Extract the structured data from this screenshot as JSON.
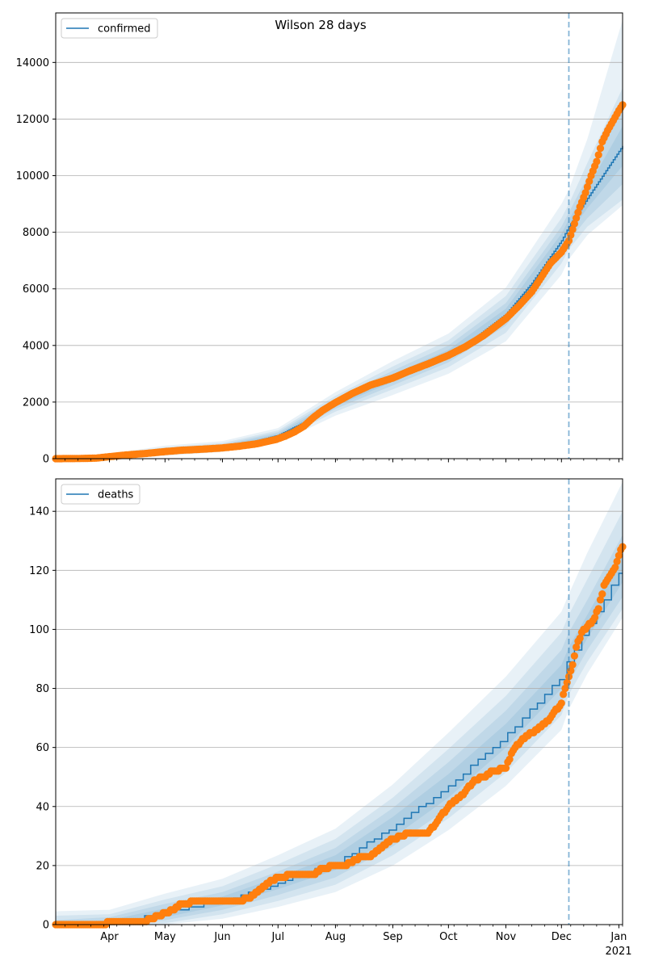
{
  "title": "Wilson 28 days",
  "colors": {
    "model": "#1f77b4",
    "observed": "#ff7f0e",
    "band": "#1f77b4",
    "grid": "#b0b0b0",
    "forecast_line": "#1f77b4"
  },
  "chart_data": [
    {
      "type": "line",
      "title": "Wilson 28 days",
      "legend": {
        "label": "confirmed",
        "position": "top-left"
      },
      "x_range": [
        "2020-03-03",
        "2021-01-03"
      ],
      "ylim": [
        0,
        15750
      ],
      "y_ticks": [
        0,
        2000,
        4000,
        6000,
        8000,
        10000,
        12000,
        14000
      ],
      "y_tick_labels": [
        "0",
        "2000",
        "4000",
        "6000",
        "8000",
        "10000",
        "12000",
        "14000"
      ],
      "grid": "horizontal",
      "forecast_start": "2020-12-05",
      "series": [
        {
          "name": "confirmed",
          "kind": "model-median",
          "x": [
            "2020-03-03",
            "2020-03-20",
            "2020-04-01",
            "2020-04-15",
            "2020-05-01",
            "2020-05-15",
            "2020-06-01",
            "2020-06-15",
            "2020-07-01",
            "2020-07-15",
            "2020-08-01",
            "2020-08-15",
            "2020-09-01",
            "2020-09-15",
            "2020-10-01",
            "2020-10-15",
            "2020-11-01",
            "2020-11-15",
            "2020-12-01",
            "2020-12-05",
            "2020-12-15",
            "2021-01-03"
          ],
          "y": [
            0,
            15,
            60,
            150,
            270,
            330,
            420,
            560,
            820,
            1280,
            1940,
            2400,
            2850,
            3250,
            3700,
            4250,
            5100,
            6200,
            7700,
            8200,
            9200,
            11050
          ]
        },
        {
          "kind": "band-inner",
          "x": [
            "2020-03-03",
            "2020-04-01",
            "2020-05-01",
            "2020-06-01",
            "2020-07-01",
            "2020-08-01",
            "2020-09-01",
            "2020-10-01",
            "2020-11-01",
            "2020-12-01",
            "2020-12-05",
            "2020-12-15",
            "2021-01-03"
          ],
          "lower": [
            0,
            40,
            230,
            380,
            760,
            1850,
            2720,
            3550,
            4900,
            7450,
            7950,
            8850,
            10350
          ],
          "upper": [
            0,
            80,
            310,
            460,
            880,
            2030,
            2980,
            3850,
            5300,
            7950,
            8450,
            9550,
            11750
          ]
        },
        {
          "kind": "band-middle",
          "x": [
            "2020-03-03",
            "2020-04-01",
            "2020-05-01",
            "2020-06-01",
            "2020-07-01",
            "2020-08-01",
            "2020-09-01",
            "2020-10-01",
            "2020-11-01",
            "2020-12-01",
            "2020-12-05",
            "2020-12-15",
            "2021-01-03"
          ],
          "lower": [
            0,
            25,
            190,
            340,
            700,
            1760,
            2590,
            3400,
            4700,
            7200,
            7700,
            8500,
            9700
          ],
          "upper": [
            5,
            100,
            350,
            500,
            940,
            2120,
            3110,
            4000,
            5500,
            8200,
            8700,
            9950,
            12450
          ]
        },
        {
          "kind": "band-outer",
          "x": [
            "2020-03-03",
            "2020-04-01",
            "2020-05-01",
            "2020-06-01",
            "2020-07-01",
            "2020-08-01",
            "2020-09-01",
            "2020-10-01",
            "2020-11-01",
            "2020-12-01",
            "2020-12-05",
            "2020-12-15",
            "2021-01-03"
          ],
          "lower": [
            0,
            10,
            150,
            300,
            640,
            1660,
            2450,
            3230,
            4450,
            6900,
            7400,
            8200,
            9150
          ],
          "upper": [
            15,
            130,
            400,
            550,
            1000,
            2220,
            3260,
            4180,
            5750,
            8500,
            9000,
            10450,
            13100
          ]
        },
        {
          "kind": "band-widest",
          "x": [
            "2020-03-03",
            "2020-04-01",
            "2020-05-01",
            "2020-06-01",
            "2020-07-01",
            "2020-08-01",
            "2020-09-01",
            "2020-10-01",
            "2020-11-01",
            "2020-12-01",
            "2020-12-05",
            "2020-12-15",
            "2021-01-03"
          ],
          "lower": [
            0,
            0,
            100,
            240,
            560,
            1520,
            2250,
            3000,
            4150,
            6500,
            7050,
            7900,
            8950
          ],
          "upper": [
            30,
            170,
            460,
            620,
            1080,
            2350,
            3450,
            4420,
            6050,
            9000,
            9500,
            11300,
            15500
          ]
        },
        {
          "name": "observed",
          "kind": "observed",
          "x": [
            "2020-03-03",
            "2020-03-15",
            "2020-03-25",
            "2020-04-01",
            "2020-04-10",
            "2020-04-20",
            "2020-05-01",
            "2020-05-10",
            "2020-05-20",
            "2020-06-01",
            "2020-06-10",
            "2020-06-20",
            "2020-06-30",
            "2020-07-05",
            "2020-07-10",
            "2020-07-15",
            "2020-07-20",
            "2020-07-25",
            "2020-08-01",
            "2020-08-10",
            "2020-08-20",
            "2020-09-01",
            "2020-09-10",
            "2020-09-20",
            "2020-10-01",
            "2020-10-10",
            "2020-10-20",
            "2020-11-01",
            "2020-11-08",
            "2020-11-15",
            "2020-11-20",
            "2020-11-25",
            "2020-12-01",
            "2020-12-05",
            "2020-12-08",
            "2020-12-11",
            "2020-12-14",
            "2020-12-17",
            "2020-12-20",
            "2020-12-23",
            "2020-12-26",
            "2020-12-29",
            "2021-01-01",
            "2021-01-03"
          ],
          "y": [
            0,
            5,
            20,
            70,
            130,
            180,
            250,
            300,
            330,
            380,
            440,
            530,
            680,
            800,
            950,
            1150,
            1450,
            1700,
            1980,
            2300,
            2600,
            2850,
            3100,
            3350,
            3650,
            3950,
            4350,
            4950,
            5400,
            5900,
            6400,
            6900,
            7300,
            7700,
            8300,
            8900,
            9400,
            10000,
            10500,
            11200,
            11600,
            11950,
            12300,
            12500
          ]
        }
      ]
    },
    {
      "type": "line",
      "legend": {
        "label": "deaths",
        "position": "top-left"
      },
      "x_range": [
        "2020-03-03",
        "2021-01-03"
      ],
      "x_ticks": [
        "2020-04-01",
        "2020-05-01",
        "2020-06-01",
        "2020-07-01",
        "2020-08-01",
        "2020-09-01",
        "2020-10-01",
        "2020-11-01",
        "2020-12-01",
        "2021-01-01"
      ],
      "x_tick_labels": [
        "Apr",
        "May",
        "Jun",
        "Jul",
        "Aug",
        "Sep",
        "Oct",
        "Nov",
        "Dec",
        "Jan"
      ],
      "x_year_label": "2021",
      "ylim": [
        0,
        151
      ],
      "y_ticks": [
        0,
        20,
        40,
        60,
        80,
        100,
        120,
        140
      ],
      "y_tick_labels": [
        "0",
        "20",
        "40",
        "60",
        "80",
        "100",
        "120",
        "140"
      ],
      "grid": "horizontal",
      "forecast_start": "2020-12-05",
      "series": [
        {
          "name": "deaths",
          "kind": "model-median",
          "x": [
            "2020-03-03",
            "2020-04-01",
            "2020-05-01",
            "2020-06-01",
            "2020-07-01",
            "2020-08-01",
            "2020-09-01",
            "2020-10-01",
            "2020-11-01",
            "2020-12-01",
            "2020-12-05",
            "2020-12-15",
            "2021-01-03"
          ],
          "y": [
            0,
            0.5,
            4,
            8,
            14,
            21,
            33,
            47,
            64,
            84,
            90,
            101,
            121
          ]
        },
        {
          "kind": "band-inner",
          "x": [
            "2020-03-03",
            "2020-04-01",
            "2020-05-01",
            "2020-06-01",
            "2020-07-01",
            "2020-08-01",
            "2020-09-01",
            "2020-10-01",
            "2020-11-01",
            "2020-12-01",
            "2020-12-05",
            "2020-12-15",
            "2021-01-03"
          ],
          "lower": [
            0,
            0,
            2.5,
            6.5,
            12,
            18.5,
            29.5,
            43,
            60,
            80,
            86,
            97,
            116
          ],
          "upper": [
            0.5,
            1.5,
            5.5,
            9.5,
            16,
            23.5,
            36.5,
            51,
            68,
            88,
            94,
            105,
            126
          ]
        },
        {
          "kind": "band-middle",
          "x": [
            "2020-03-03",
            "2020-04-01",
            "2020-05-01",
            "2020-06-01",
            "2020-07-01",
            "2020-08-01",
            "2020-09-01",
            "2020-10-01",
            "2020-11-01",
            "2020-12-01",
            "2020-12-05",
            "2020-12-15",
            "2021-01-03"
          ],
          "lower": [
            0,
            0,
            1.5,
            5,
            10,
            16,
            26.5,
            39.5,
            55.5,
            75.5,
            82,
            93,
            111
          ],
          "upper": [
            1.5,
            2.5,
            7,
            11,
            18,
            26,
            39.5,
            55,
            72.5,
            93,
            99,
            110,
            132
          ]
        },
        {
          "kind": "band-outer",
          "x": [
            "2020-03-03",
            "2020-04-01",
            "2020-05-01",
            "2020-06-01",
            "2020-07-01",
            "2020-08-01",
            "2020-09-01",
            "2020-10-01",
            "2020-11-01",
            "2020-12-01",
            "2020-12-05",
            "2020-12-15",
            "2021-01-03"
          ],
          "lower": [
            0,
            0,
            0.5,
            3.5,
            8,
            13.5,
            23.5,
            36,
            51.5,
            71,
            78,
            89,
            107
          ],
          "upper": [
            3,
            3.5,
            8.5,
            13,
            20.5,
            29,
            43,
            59.5,
            77.5,
            99,
            105,
            117,
            140
          ]
        },
        {
          "kind": "band-widest",
          "x": [
            "2020-03-03",
            "2020-04-01",
            "2020-05-01",
            "2020-06-01",
            "2020-07-01",
            "2020-08-01",
            "2020-09-01",
            "2020-10-01",
            "2020-11-01",
            "2020-12-01",
            "2020-12-05",
            "2020-12-15",
            "2021-01-03"
          ],
          "lower": [
            0,
            0,
            0,
            2,
            6,
            11,
            20,
            32,
            47,
            66,
            73,
            85,
            104
          ],
          "upper": [
            4.5,
            5,
            10.5,
            15.5,
            23.5,
            32.5,
            47.5,
            65,
            84,
            106,
            112,
            126,
            150
          ]
        },
        {
          "name": "observed",
          "kind": "observed",
          "x": [
            "2020-03-03",
            "2020-03-20",
            "2020-04-10",
            "2020-04-20",
            "2020-04-28",
            "2020-05-05",
            "2020-05-10",
            "2020-05-20",
            "2020-06-01",
            "2020-06-10",
            "2020-06-15",
            "2020-06-20",
            "2020-06-25",
            "2020-07-01",
            "2020-07-10",
            "2020-07-20",
            "2020-07-25",
            "2020-08-01",
            "2020-08-06",
            "2020-08-15",
            "2020-08-20",
            "2020-08-25",
            "2020-09-01",
            "2020-09-10",
            "2020-09-15",
            "2020-09-20",
            "2020-09-25",
            "2020-10-01",
            "2020-10-10",
            "2020-10-15",
            "2020-10-20",
            "2020-10-25",
            "2020-11-01",
            "2020-11-05",
            "2020-11-10",
            "2020-11-15",
            "2020-11-20",
            "2020-11-25",
            "2020-12-01",
            "2020-12-03",
            "2020-12-05",
            "2020-12-07",
            "2020-12-09",
            "2020-12-12",
            "2020-12-15",
            "2020-12-18",
            "2020-12-21",
            "2020-12-24",
            "2020-12-27",
            "2020-12-30",
            "2021-01-01",
            "2021-01-03"
          ],
          "y": [
            0,
            0,
            1,
            1,
            3,
            5,
            7,
            8,
            8,
            8,
            9,
            11,
            14,
            16,
            17,
            17,
            19,
            20,
            20,
            23,
            23,
            26,
            29,
            31,
            31,
            31,
            35,
            40,
            45,
            49,
            50,
            52,
            53,
            59,
            63,
            65,
            67,
            70,
            75,
            80,
            84,
            88,
            94,
            99,
            101,
            103,
            107,
            115,
            118,
            121,
            125,
            128
          ]
        }
      ]
    }
  ]
}
